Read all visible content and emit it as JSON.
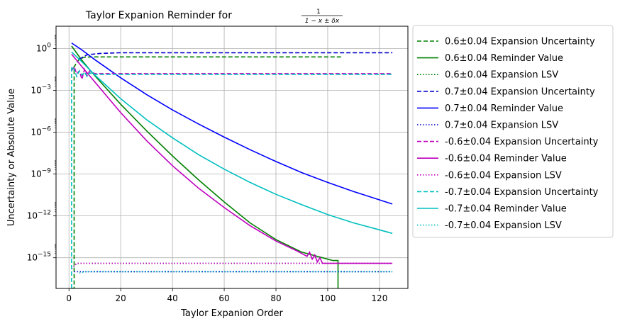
{
  "chart_data": {
    "type": "line",
    "title": "Taylor Expanion Reminder for ",
    "title_formula": {
      "numerator": "1",
      "denominator": "1 − x ± δx"
    },
    "xlabel": "Taylor Expanion Order",
    "ylabel": "Uncertainty or Absolute Value",
    "xlim": [
      -5,
      131
    ],
    "ylim_log10": [
      -17.2,
      1.6
    ],
    "y_scale": "log",
    "grid": true,
    "legend_position": "outside-right",
    "x_ticks": [
      0,
      20,
      40,
      60,
      80,
      100,
      120
    ],
    "x_tick_labels": [
      "0",
      "20",
      "40",
      "60",
      "80",
      "100",
      "120"
    ],
    "y_ticks_log10": [
      0,
      -3,
      -6,
      -9,
      -12,
      -15
    ],
    "y_tick_labels": [
      {
        "base": "10",
        "exp": "0"
      },
      {
        "base": "10",
        "exp": "−3"
      },
      {
        "base": "10",
        "exp": "−6"
      },
      {
        "base": "10",
        "exp": "−9"
      },
      {
        "base": "10",
        "exp": "−12"
      },
      {
        "base": "10",
        "exp": "−15"
      }
    ],
    "series": [
      {
        "name": "0.6±0.04 Expansion Uncertainty",
        "color": "#008000",
        "dash": "dashed",
        "points": [
          [
            1,
            -17.2
          ],
          [
            2,
            -17.2
          ],
          [
            2,
            -1.3
          ],
          [
            4,
            -0.75
          ],
          [
            6,
            -0.62
          ],
          [
            10,
            -0.6
          ],
          [
            40,
            -0.6
          ],
          [
            106,
            -0.6
          ]
        ]
      },
      {
        "name": "0.6±0.04 Reminder Value",
        "color": "#008000",
        "dash": "solid",
        "points": [
          [
            1,
            0.18
          ],
          [
            5,
            -0.85
          ],
          [
            10,
            -1.95
          ],
          [
            20,
            -4.0
          ],
          [
            30,
            -5.9
          ],
          [
            40,
            -7.7
          ],
          [
            50,
            -9.4
          ],
          [
            60,
            -11.0
          ],
          [
            70,
            -12.5
          ],
          [
            80,
            -13.7
          ],
          [
            90,
            -14.6
          ],
          [
            100,
            -15.1
          ],
          [
            102,
            -15.2
          ],
          [
            104,
            -15.2
          ],
          [
            104,
            -17.2
          ]
        ]
      },
      {
        "name": "0.6±0.04 Expansion LSV",
        "color": "#008000",
        "dash": "dotted",
        "points": [
          [
            1,
            -15.8
          ],
          [
            3,
            -15.4
          ],
          [
            125,
            -15.4
          ]
        ]
      },
      {
        "name": "0.7±0.04 Expansion Uncertainty",
        "color": "#0000cc",
        "dash": "dashed",
        "points": [
          [
            4,
            -0.75
          ],
          [
            7,
            -0.45
          ],
          [
            12,
            -0.35
          ],
          [
            20,
            -0.3
          ],
          [
            60,
            -0.3
          ],
          [
            125,
            -0.3
          ]
        ]
      },
      {
        "name": "0.7±0.04 Reminder Value",
        "color": "#0000ff",
        "dash": "solid",
        "points": [
          [
            1,
            0.4
          ],
          [
            5,
            -0.1
          ],
          [
            10,
            -0.8
          ],
          [
            20,
            -2.1
          ],
          [
            30,
            -3.3
          ],
          [
            40,
            -4.4
          ],
          [
            50,
            -5.4
          ],
          [
            60,
            -6.35
          ],
          [
            70,
            -7.25
          ],
          [
            80,
            -8.1
          ],
          [
            90,
            -8.9
          ],
          [
            100,
            -9.6
          ],
          [
            110,
            -10.25
          ],
          [
            120,
            -10.85
          ],
          [
            125,
            -11.15
          ]
        ]
      },
      {
        "name": "0.7±0.04 Expansion LSV",
        "color": "#0000cc",
        "dash": "dotted",
        "points": [
          [
            2,
            -16.0
          ],
          [
            125,
            -16.0
          ]
        ]
      },
      {
        "name": "-0.6±0.04 Expansion Uncertainty",
        "color": "#bf00bf",
        "dash": "dashed",
        "points": [
          [
            1,
            -1.6
          ],
          [
            2,
            -1.3
          ],
          [
            3,
            -1.8
          ],
          [
            4,
            -1.6
          ],
          [
            5,
            -2.2
          ],
          [
            6,
            -1.5
          ],
          [
            7,
            -1.95
          ],
          [
            8,
            -1.6
          ],
          [
            10,
            -1.8
          ],
          [
            15,
            -1.8
          ],
          [
            60,
            -1.8
          ],
          [
            125,
            -1.8
          ]
        ]
      },
      {
        "name": "-0.6±0.04 Reminder Value",
        "color": "#bf00bf",
        "dash": "solid",
        "points": [
          [
            1,
            -0.4
          ],
          [
            5,
            -1.3
          ],
          [
            10,
            -2.4
          ],
          [
            20,
            -4.6
          ],
          [
            30,
            -6.6
          ],
          [
            40,
            -8.4
          ],
          [
            50,
            -10.0
          ],
          [
            60,
            -11.4
          ],
          [
            70,
            -12.7
          ],
          [
            80,
            -13.8
          ],
          [
            88,
            -14.5
          ],
          [
            92,
            -14.9
          ],
          [
            93,
            -14.6
          ],
          [
            94,
            -15.1
          ],
          [
            95,
            -14.8
          ],
          [
            96,
            -15.3
          ],
          [
            97,
            -15.0
          ],
          [
            98,
            -15.4
          ],
          [
            100,
            -15.4
          ],
          [
            125,
            -15.4
          ]
        ]
      },
      {
        "name": "-0.6±0.04 Expansion LSV",
        "color": "#bf00bf",
        "dash": "dotted",
        "points": [
          [
            1,
            -15.8
          ],
          [
            3,
            -15.4
          ],
          [
            125,
            -15.4
          ]
        ]
      },
      {
        "name": "-0.7±0.04 Expansion Uncertainty",
        "color": "#00bfbf",
        "dash": "dashed",
        "points": [
          [
            1,
            -17.2
          ],
          [
            1,
            -1.3
          ],
          [
            2,
            -1.5
          ],
          [
            3,
            -2.0
          ],
          [
            4,
            -1.6
          ],
          [
            5,
            -1.9
          ],
          [
            6,
            -1.7
          ],
          [
            7,
            -2.0
          ],
          [
            8,
            -1.75
          ],
          [
            10,
            -1.85
          ],
          [
            15,
            -1.85
          ],
          [
            60,
            -1.85
          ],
          [
            125,
            -1.85
          ]
        ]
      },
      {
        "name": "-0.7±0.04 Reminder Value",
        "color": "#00bfbf",
        "dash": "solid",
        "points": [
          [
            1,
            -0.25
          ],
          [
            5,
            -0.95
          ],
          [
            10,
            -1.9
          ],
          [
            20,
            -3.6
          ],
          [
            30,
            -5.1
          ],
          [
            40,
            -6.4
          ],
          [
            50,
            -7.6
          ],
          [
            60,
            -8.65
          ],
          [
            70,
            -9.6
          ],
          [
            80,
            -10.45
          ],
          [
            90,
            -11.2
          ],
          [
            100,
            -11.9
          ],
          [
            110,
            -12.5
          ],
          [
            120,
            -13.0
          ],
          [
            125,
            -13.25
          ]
        ]
      },
      {
        "name": "-0.7±0.04 Expansion LSV",
        "color": "#00bfbf",
        "dash": "dotted",
        "points": [
          [
            4,
            -16.1
          ],
          [
            6,
            -16.0
          ],
          [
            125,
            -16.0
          ]
        ]
      }
    ]
  }
}
